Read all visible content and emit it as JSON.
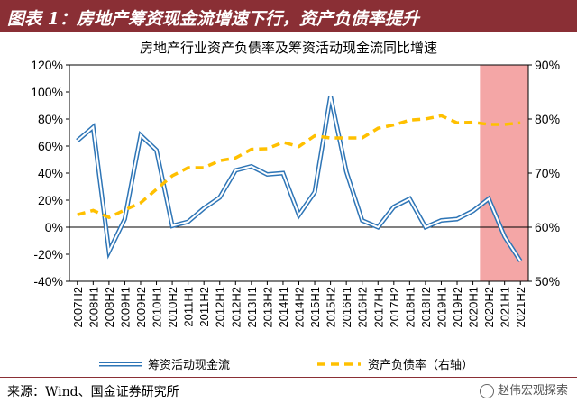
{
  "header": {
    "title": "图表 1：房地产筹资现金流增速下行，资产负债率提升"
  },
  "source": "来源：Wind、国金证券研究所",
  "watermark": "赵伟宏观探索",
  "colors": {
    "header_bg": "#8a2f35",
    "cashflow_line": "#2e75b6",
    "debt_ratio_line": "#ffc000",
    "highlight_band": "#f4a6a6"
  },
  "chart_data": {
    "type": "line",
    "title": "房地产行业资产负债率及筹资活动现金流同比增速",
    "categories": [
      "2007H2",
      "2008H1",
      "2008H2",
      "2009H1",
      "2009H2",
      "2010H1",
      "2010H2",
      "2011H1",
      "2011H2",
      "2012H1",
      "2012H2",
      "2013H1",
      "2013H2",
      "2014H1",
      "2014H2",
      "2015H1",
      "2015H2",
      "2016H1",
      "2016H2",
      "2017H1",
      "2017H2",
      "2018H1",
      "2018H2",
      "2019H1",
      "2019H2",
      "2020H1",
      "2020H2",
      "2021H1",
      "2021H2"
    ],
    "left_axis": {
      "ylim": [
        -40,
        120
      ],
      "ticks": [
        "-40%",
        "-20%",
        "0%",
        "20%",
        "40%",
        "60%",
        "80%",
        "100%",
        "120%"
      ],
      "tick_values": [
        -40,
        -20,
        0,
        20,
        40,
        60,
        80,
        100,
        120
      ]
    },
    "right_axis": {
      "ylim": [
        50,
        90
      ],
      "ticks": [
        "50%",
        "60%",
        "70%",
        "80%",
        "90%"
      ],
      "tick_values": [
        50,
        60,
        70,
        80,
        90
      ]
    },
    "series": [
      {
        "name": "筹资活动现金流",
        "axis": "left",
        "style": "solid",
        "values": [
          64,
          74,
          -18,
          6,
          68,
          57,
          1,
          4,
          14,
          22,
          42,
          45,
          39,
          40,
          9,
          26,
          97,
          41,
          5,
          0,
          15,
          21,
          0,
          5,
          6,
          12,
          21,
          -7,
          -25
        ]
      },
      {
        "name": "资产负债率（右轴）",
        "axis": "right",
        "style": "dashed",
        "values": [
          62.3,
          63.1,
          61.8,
          63.2,
          64.5,
          67.0,
          69.5,
          71.0,
          71.0,
          72.3,
          72.8,
          74.4,
          74.5,
          75.7,
          74.9,
          76.9,
          76.5,
          76.5,
          76.5,
          78.3,
          78.9,
          79.8,
          80.0,
          80.6,
          79.3,
          79.4,
          79.0,
          79.0,
          79.3
        ]
      }
    ],
    "highlight": {
      "from": "2020H2",
      "to": "2021H2"
    },
    "grid": false,
    "legend_position": "bottom"
  }
}
